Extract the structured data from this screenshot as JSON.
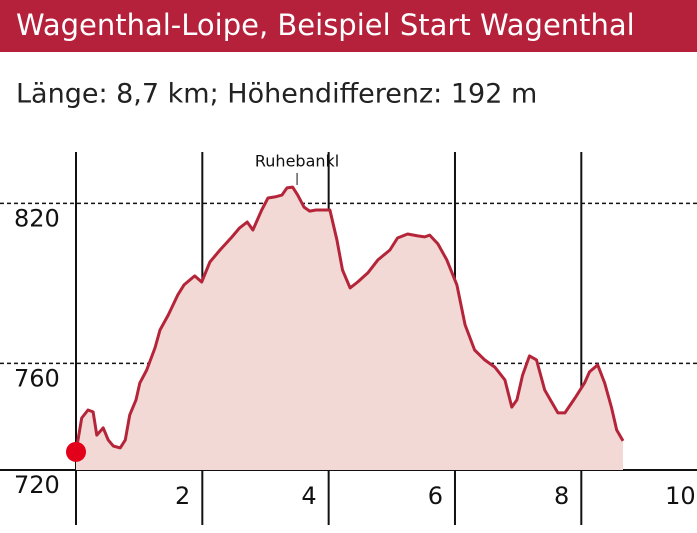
{
  "chart_data": {
    "type": "area",
    "title": "Wagenthal-Loipe, Beispiel Start Wagenthal",
    "subtitle": "Länge: 8,7 km; Höhendifferenz: 192 m",
    "x": [
      0,
      0.09,
      0.19,
      0.27,
      0.33,
      0.43,
      0.51,
      0.59,
      0.7,
      0.78,
      0.85,
      0.95,
      1.01,
      1.12,
      1.25,
      1.33,
      1.46,
      1.61,
      1.71,
      1.88,
      1.99,
      2.12,
      2.28,
      2.47,
      2.59,
      2.71,
      2.8,
      2.94,
      3.04,
      3.15,
      3.26,
      3.34,
      3.43,
      3.51,
      3.61,
      3.7,
      3.8,
      3.89,
      4.02,
      4.13,
      4.22,
      4.34,
      4.46,
      4.62,
      4.78,
      4.97,
      5.09,
      5.25,
      5.41,
      5.52,
      5.6,
      5.73,
      5.87,
      6.03,
      6.16,
      6.31,
      6.47,
      6.63,
      6.79,
      6.9,
      6.98,
      7.07,
      7.18,
      7.29,
      7.42,
      7.53,
      7.63,
      7.74,
      7.9,
      8.05,
      8.13,
      8.26,
      8.37,
      8.48,
      8.56,
      8.66
    ],
    "series": [
      {
        "color": "#b5253a",
        "fill": "#f2d9d5",
        "values": [
          726.8,
          739.5,
          742.5,
          741.8,
          733.1,
          735.8,
          731.3,
          729,
          728.3,
          731.3,
          740.6,
          746.3,
          752.6,
          757.5,
          765.8,
          772.5,
          778.1,
          785.6,
          789.4,
          792.8,
          790.5,
          798,
          802.5,
          807.4,
          810.8,
          813,
          810,
          817.5,
          822,
          822.4,
          823.1,
          825.8,
          826.1,
          823.1,
          818.6,
          817.1,
          817.5,
          817.5,
          817.5,
          806.3,
          795,
          788.3,
          790.5,
          793.9,
          798.8,
          802.5,
          807,
          808.5,
          807.8,
          807.4,
          808.1,
          804.8,
          798.8,
          789.4,
          774.4,
          765,
          761.3,
          758.6,
          753.8,
          743.6,
          746.3,
          755.6,
          762.8,
          761.3,
          750,
          745.5,
          741.4,
          741.4,
          747,
          752.6,
          756.8,
          759.4,
          752.6,
          743.3,
          735,
          730.9
        ]
      }
    ],
    "start_marker_color": "#e3001b",
    "annotations": [
      {
        "text": "Ruhebankl",
        "x": 3.5
      }
    ],
    "xlim": [
      0,
      9.8
    ],
    "xticks": [
      2,
      4,
      6,
      8,
      10
    ],
    "ylim": [
      720,
      840
    ],
    "yticks": [
      720,
      760,
      820
    ]
  }
}
